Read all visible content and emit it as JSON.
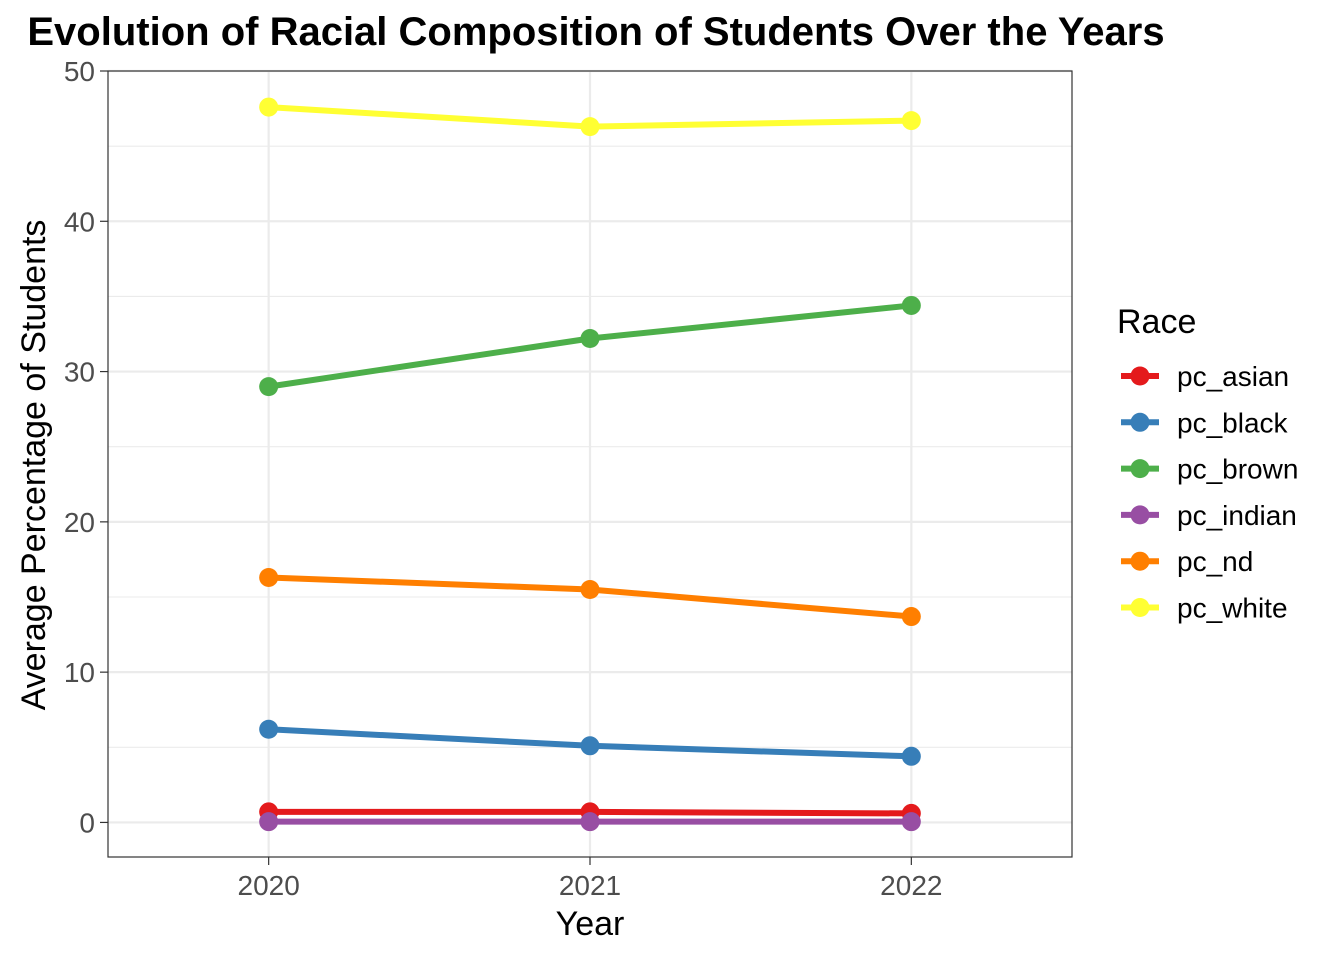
{
  "chart_data": {
    "type": "line",
    "title": "Evolution of Racial Composition of Students Over the Years",
    "xlabel": "Year",
    "ylabel": "Average Percentage of Students",
    "categories": [
      "2020",
      "2021",
      "2022"
    ],
    "ylim": [
      -2.3,
      50
    ],
    "yticks": [
      0,
      10,
      20,
      30,
      40,
      50
    ],
    "grid": true,
    "legend": {
      "title": "Race",
      "placement": "right"
    },
    "series": [
      {
        "name": "pc_asian",
        "color": "#E41A1C",
        "values": [
          0.7,
          0.7,
          0.6
        ]
      },
      {
        "name": "pc_black",
        "color": "#377EB8",
        "values": [
          6.2,
          5.1,
          4.4
        ]
      },
      {
        "name": "pc_brown",
        "color": "#4DAF4A",
        "values": [
          29.0,
          32.2,
          34.4
        ]
      },
      {
        "name": "pc_indian",
        "color": "#984EA3",
        "values": [
          0.05,
          0.05,
          0.05
        ]
      },
      {
        "name": "pc_nd",
        "color": "#FF7F00",
        "values": [
          16.3,
          15.5,
          13.7
        ]
      },
      {
        "name": "pc_white",
        "color": "#FFFF33",
        "values": [
          47.6,
          46.3,
          46.7
        ]
      }
    ]
  }
}
